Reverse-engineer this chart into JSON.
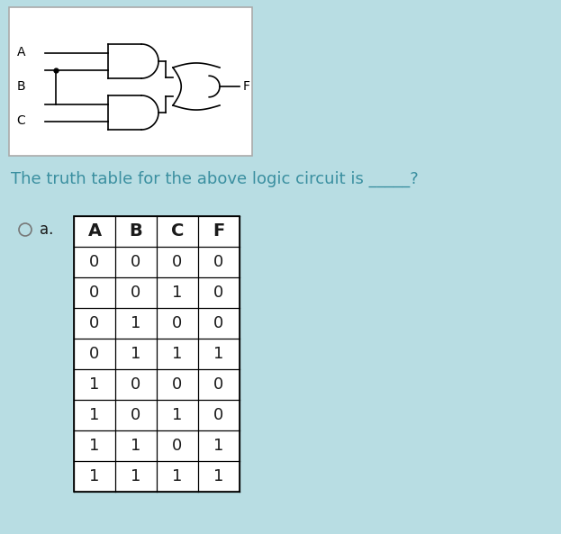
{
  "background_color": "#b8dde3",
  "question_text": "The truth table for the above logic circuit is _____?",
  "question_color": "#3a8fa0",
  "option_label": "a.",
  "headers": [
    "A",
    "B",
    "C",
    "F"
  ],
  "rows": [
    [
      0,
      0,
      0,
      0
    ],
    [
      0,
      0,
      1,
      0
    ],
    [
      0,
      1,
      0,
      0
    ],
    [
      0,
      1,
      1,
      1
    ],
    [
      1,
      0,
      0,
      0
    ],
    [
      1,
      0,
      1,
      0
    ],
    [
      1,
      1,
      0,
      1
    ],
    [
      1,
      1,
      1,
      1
    ]
  ],
  "text_color": "#1a1a1a",
  "table_bg": "#ffffff",
  "circuit_bg": "#ffffff",
  "circuit_border": "#aaaaaa"
}
